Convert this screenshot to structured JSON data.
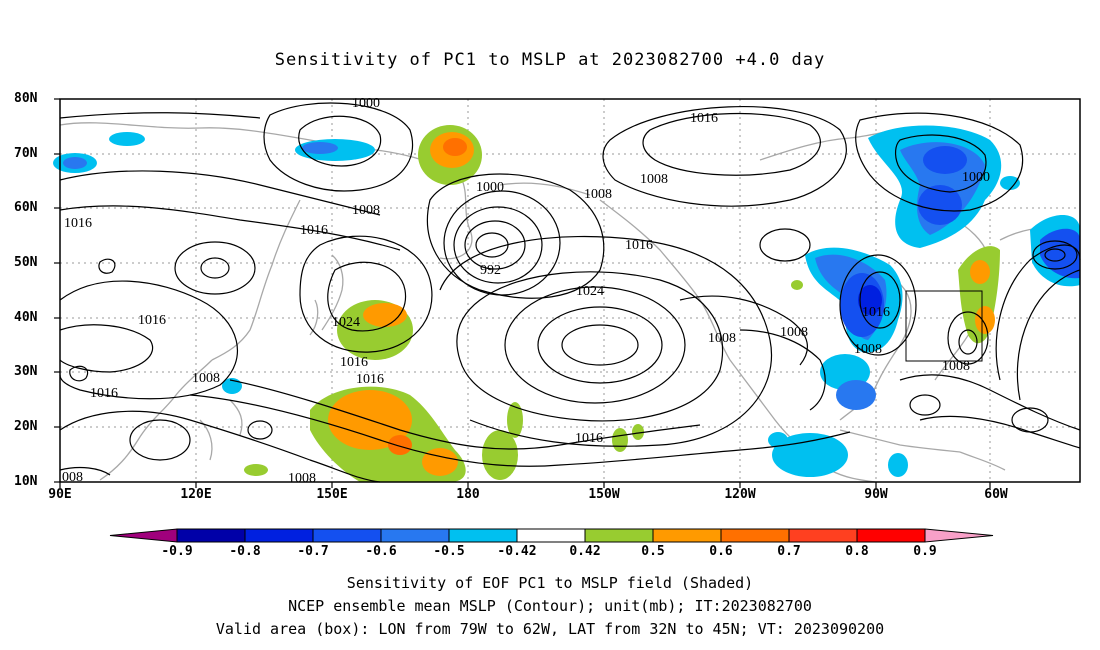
{
  "title": "Sensitivity of PC1 to MSLP at 2023082700 +4.0 day",
  "axes": {
    "y_ticks": [
      "80N",
      "70N",
      "60N",
      "50N",
      "40N",
      "30N",
      "20N",
      "10N"
    ],
    "x_ticks": [
      "90E",
      "120E",
      "150E",
      "180",
      "150W",
      "120W",
      "90W",
      "60W"
    ]
  },
  "contour_labels": [
    "1000",
    "1016",
    "1008",
    "1000",
    "1008",
    "1016",
    "1008",
    "1000",
    "1016",
    "1016",
    "1016",
    "992",
    "1016",
    "1024",
    "1008",
    "1008",
    "1024",
    "1016",
    "1016",
    "1008",
    "1016",
    "1016",
    "1008",
    "1008",
    "1016",
    "1008",
    "1008",
    "008"
  ],
  "colorbar": {
    "levels": [
      "-0.9",
      "-0.8",
      "-0.7",
      "-0.6",
      "-0.5",
      "-0.42",
      "0.42",
      "0.5",
      "0.6",
      "0.7",
      "0.8",
      "0.9"
    ],
    "colors": [
      "#a0007c",
      "#0000a8",
      "#0020e0",
      "#1450f0",
      "#2878f0",
      "#00c0f0",
      "#ffffff",
      "#98cc30",
      "#ff9a00",
      "#ff7000",
      "#ff4020",
      "#ff0000",
      "#f8a0c8"
    ]
  },
  "captions": [
    "Sensitivity of EOF PC1 to MSLP field (Shaded)",
    "NCEP ensemble mean MSLP (Contour); unit(mb); IT:2023082700",
    "Valid area (box): LON from 79W to 62W, LAT from 32N to 45N; VT: 2023090200"
  ]
}
